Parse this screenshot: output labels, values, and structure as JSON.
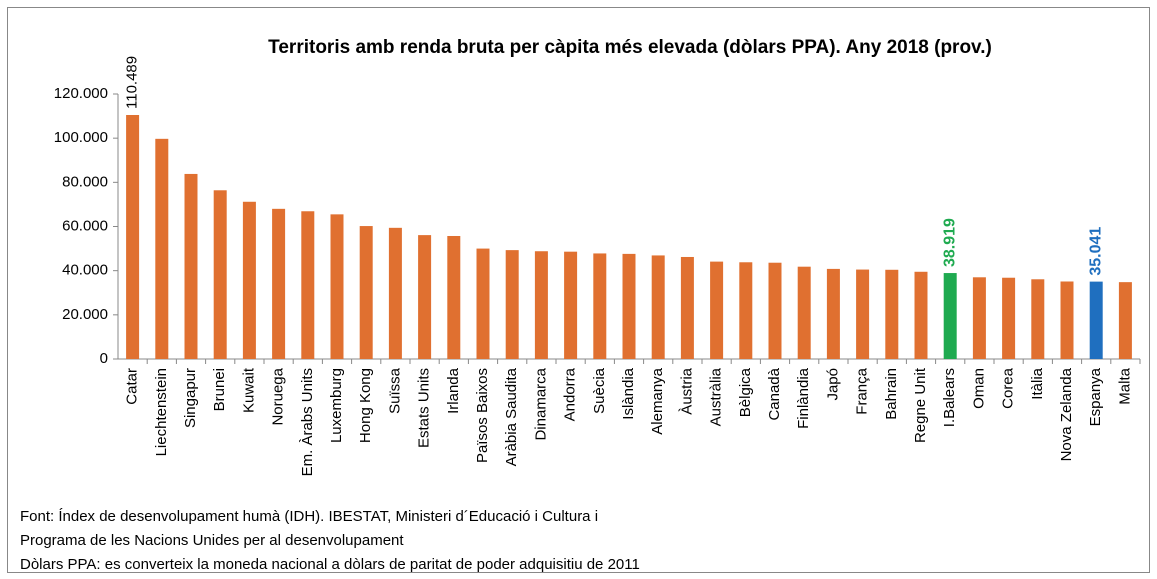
{
  "chart_data": {
    "type": "bar",
    "title": "Territoris amb renda bruta per càpita més elevada (dòlars PPA). Any  2018 (prov.)",
    "categories": [
      "Catar",
      "Liechtenstein",
      "Singapur",
      "Brunei",
      "Kuwait",
      "Noruega",
      "Em. Àrabs Units",
      "Luxemburg",
      "Hong Kong",
      "Suïssa",
      "Estats Units",
      "Irlanda",
      "Països Baixos",
      "Aràbia Saudita",
      "Dinamarca",
      "Andorra",
      "Suècia",
      "Islàndia",
      "Alemanya",
      "Àustria",
      "Austràlia",
      "Bèlgica",
      "Canadà",
      "Finlàndia",
      "Japó",
      "França",
      "Bahrain",
      "Regne Unit",
      "I.Balears",
      "Oman",
      "Corea",
      "Itàlia",
      "Nova Zelanda",
      "Espanya",
      "Malta"
    ],
    "values": [
      110489,
      99700,
      83800,
      76400,
      71200,
      68000,
      66900,
      65500,
      60200,
      59400,
      56100,
      55700,
      50000,
      49300,
      48800,
      48600,
      47800,
      47600,
      46900,
      46200,
      44100,
      43800,
      43600,
      41800,
      40800,
      40500,
      40400,
      39500,
      38919,
      37000,
      36800,
      36100,
      35100,
      35041,
      34800
    ],
    "value_labels": [
      "110.489",
      null,
      null,
      null,
      null,
      null,
      null,
      null,
      null,
      null,
      null,
      null,
      null,
      null,
      null,
      null,
      null,
      null,
      null,
      null,
      null,
      null,
      null,
      null,
      null,
      null,
      null,
      null,
      "38.919",
      null,
      null,
      null,
      null,
      "35.041",
      null
    ],
    "color": "#e07030",
    "colors": [
      "#e07030",
      "#e07030",
      "#e07030",
      "#e07030",
      "#e07030",
      "#e07030",
      "#e07030",
      "#e07030",
      "#e07030",
      "#e07030",
      "#e07030",
      "#e07030",
      "#e07030",
      "#e07030",
      "#e07030",
      "#e07030",
      "#e07030",
      "#e07030",
      "#e07030",
      "#e07030",
      "#e07030",
      "#e07030",
      "#e07030",
      "#e07030",
      "#e07030",
      "#e07030",
      "#e07030",
      "#e07030",
      "#1faa50",
      "#e07030",
      "#e07030",
      "#e07030",
      "#e07030",
      "#1f6fbf",
      "#e07030"
    ],
    "ylim": [
      0,
      120000
    ],
    "yticks": [
      0,
      {
        "value": 20000,
        "label": "20.000"
      },
      {
        "value": 40000,
        "label": "40.000"
      },
      {
        "value": 60000,
        "label": "60.000"
      },
      {
        "value": 80000,
        "label": "80.000"
      },
      {
        "value": 100000,
        "label": "100.000"
      },
      {
        "value": 120000,
        "label": "120.000"
      }
    ],
    "grid": false,
    "notes": [
      "Font: Índex de desenvolupament humà (IDH). IBESTAT, Ministeri d´Educació i Cultura i",
      "Programa de les Nacions Unides per al desenvolupament",
      "Dòlars PPA: es converteix la moneda nacional a dòlars de paritat de poder adquisitiu de 2011"
    ]
  }
}
